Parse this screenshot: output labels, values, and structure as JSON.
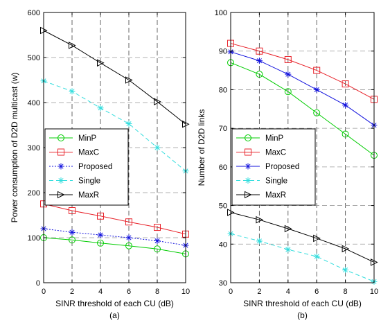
{
  "chart_data": [
    {
      "type": "line",
      "caption": "(a)",
      "xlabel": "SINR threshold of each CU (dB)",
      "ylabel": "Power consumption of D2D multicast (w)",
      "xlim": [
        0,
        10
      ],
      "ylim": [
        0,
        600
      ],
      "xticks": [
        "0",
        "2",
        "4",
        "6",
        "8",
        "10"
      ],
      "yticks": [
        "0",
        "100",
        "200",
        "300",
        "400",
        "500",
        "600"
      ],
      "grid": true,
      "legend_placement": "middle-left",
      "x": [
        0,
        2,
        4,
        6,
        8,
        10
      ],
      "series": [
        {
          "name": "MinP",
          "values": [
            100,
            95,
            88,
            82,
            75,
            64
          ],
          "color": "#00cc00",
          "marker": "circle",
          "dash": "solid"
        },
        {
          "name": "MaxC",
          "values": [
            175,
            160,
            148,
            135,
            123,
            108
          ],
          "color": "#e8222a",
          "marker": "square",
          "dash": "solid"
        },
        {
          "name": "Proposed",
          "values": [
            120,
            112,
            106,
            100,
            93,
            83
          ],
          "color": "#1010dd",
          "marker": "star",
          "dash": "dotted"
        },
        {
          "name": "Single",
          "values": [
            448,
            425,
            388,
            353,
            300,
            248
          ],
          "color": "#33dddd",
          "marker": "asterisk",
          "dash": "dashed"
        },
        {
          "name": "MaxR",
          "values": [
            560,
            527,
            488,
            450,
            402,
            352
          ],
          "color": "#000000",
          "marker": "triangle",
          "dash": "solid"
        }
      ]
    },
    {
      "type": "line",
      "caption": "(b)",
      "xlabel": "SINR threshold of each CU (dB)",
      "ylabel": "Number of D2D links",
      "xlim": [
        0,
        10
      ],
      "ylim": [
        30,
        100
      ],
      "xticks": [
        "0",
        "2",
        "4",
        "6",
        "8",
        "10"
      ],
      "yticks": [
        "30",
        "40",
        "50",
        "60",
        "70",
        "80",
        "90",
        "100"
      ],
      "grid": true,
      "legend_placement": "middle-left",
      "x": [
        0,
        2,
        4,
        6,
        8,
        10
      ],
      "series": [
        {
          "name": "MinP",
          "values": [
            87,
            84,
            79.5,
            74,
            68.5,
            63
          ],
          "color": "#00cc00",
          "marker": "circle",
          "dash": "solid"
        },
        {
          "name": "MaxC",
          "values": [
            92,
            90,
            87.8,
            85,
            81.5,
            77.5
          ],
          "color": "#e8222a",
          "marker": "square",
          "dash": "solid"
        },
        {
          "name": "Proposed",
          "values": [
            89.8,
            87.5,
            84,
            80,
            76,
            70.8
          ],
          "color": "#1010dd",
          "marker": "star",
          "dash": "solid"
        },
        {
          "name": "Single",
          "values": [
            42.7,
            40.8,
            38.6,
            36.8,
            33.3,
            30.3
          ],
          "color": "#33dddd",
          "marker": "asterisk",
          "dash": "dashed"
        },
        {
          "name": "MaxR",
          "values": [
            48.2,
            46.3,
            44,
            41.5,
            38.8,
            35.3
          ],
          "color": "#000000",
          "marker": "triangle",
          "dash": "solid"
        }
      ]
    }
  ]
}
